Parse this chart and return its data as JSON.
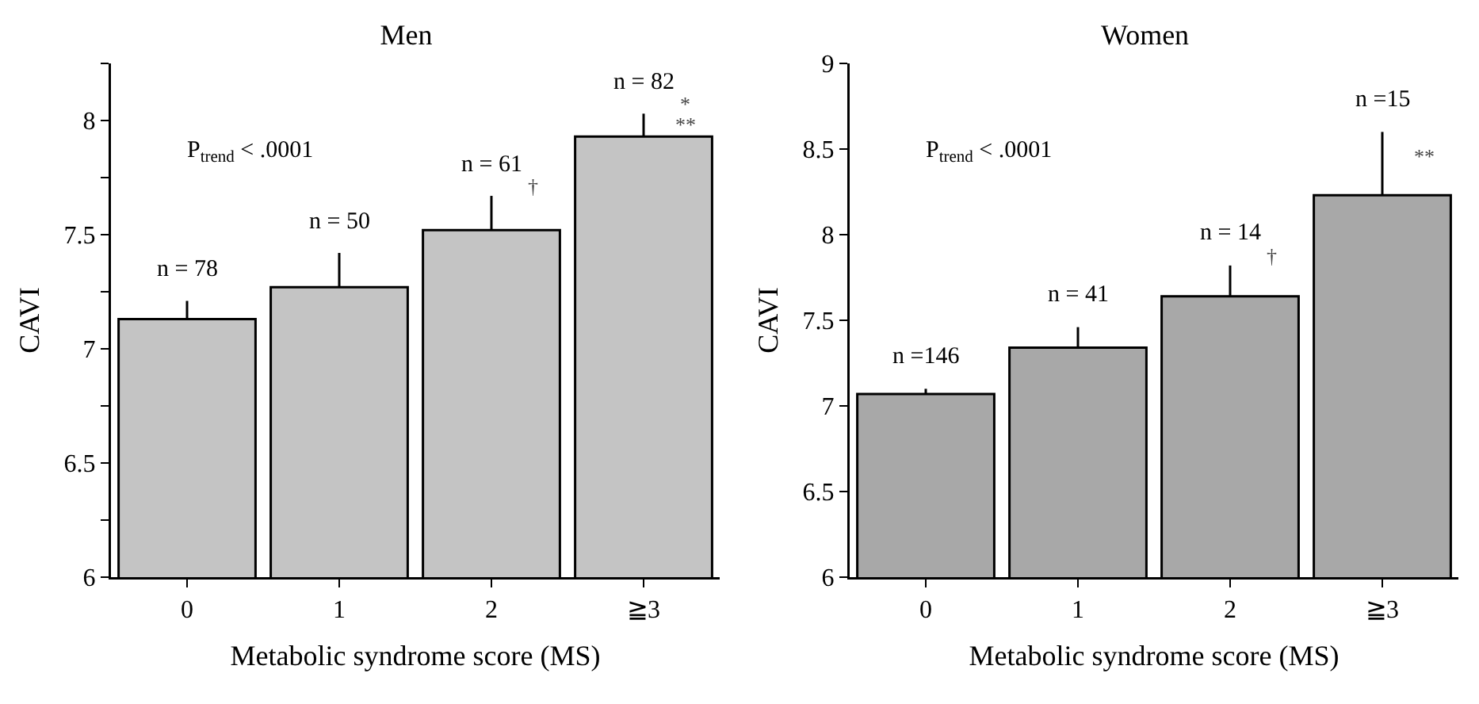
{
  "chart_data": [
    {
      "type": "bar",
      "title": "Men",
      "xlabel": "Metabolic syndrome score (MS)",
      "ylabel": "CAVI",
      "categories": [
        "0",
        "1",
        "2",
        "≧3"
      ],
      "values": [
        7.13,
        7.27,
        7.52,
        7.93
      ],
      "color": "#c4c4c4",
      "errors": [
        [
          7.13,
          7.21
        ],
        [
          7.27,
          7.42
        ],
        [
          7.52,
          7.67
        ],
        [
          7.93,
          8.03
        ]
      ],
      "ylim": [
        6,
        8.25
      ],
      "yticks": [
        6,
        {
          "value": 6.25,
          "label": null
        },
        6.5,
        {
          "value": 6.75,
          "label": null
        },
        7,
        {
          "value": 7.25,
          "label": null
        },
        7.5,
        {
          "value": 7.75,
          "label": null
        },
        8,
        {
          "value": 8.25,
          "label": null
        }
      ],
      "grid": false,
      "legend": false,
      "annotations": [
        "P$_{trend}$ < .0001",
        {
          "text": "n = 78",
          "x": "0",
          "y": 7.21
        },
        {
          "text": "n = 50",
          "x": "1",
          "y": 7.42
        },
        {
          "text": "n = 61",
          "x": "2",
          "y": 7.67
        },
        {
          "text": "n = 82",
          "x": "≧3",
          "y": 8.03
        },
        {
          "text": "†",
          "x": "2",
          "y": 7.67
        },
        {
          "text": "*",
          "x": "≧3",
          "y": 8.03
        },
        {
          "text": "**",
          "x": "≧3",
          "y": 8.03
        }
      ]
    },
    {
      "type": "bar",
      "title": "Women",
      "xlabel": "Metabolic syndrome score (MS)",
      "ylabel": "CAVI",
      "categories": [
        "0",
        "1",
        "2",
        "≧3"
      ],
      "values": [
        7.07,
        7.34,
        7.64,
        8.23
      ],
      "color": "#a8a8a8",
      "errors": [
        [
          7.07,
          7.1
        ],
        [
          7.34,
          7.46
        ],
        [
          7.64,
          7.82
        ],
        [
          8.23,
          8.6
        ]
      ],
      "ylim": [
        6,
        9
      ],
      "yticks": [
        6,
        6.5,
        7,
        7.5,
        8,
        8.5,
        9
      ],
      "grid": false,
      "legend": false,
      "annotations": [
        "P$_{trend}$ < .0001",
        {
          "text": "n =146",
          "x": "0",
          "y": 7.1
        },
        {
          "text": "n = 41",
          "x": "1",
          "y": 7.46
        },
        {
          "text": "n = 14",
          "x": "2",
          "y": 7.82
        },
        {
          "text": "n =15",
          "x": "≧3",
          "y": 8.6
        },
        {
          "text": "†",
          "x": "2",
          "y": 7.82
        },
        {
          "text": "**",
          "x": "≧3",
          "y": 8.4
        }
      ]
    }
  ]
}
